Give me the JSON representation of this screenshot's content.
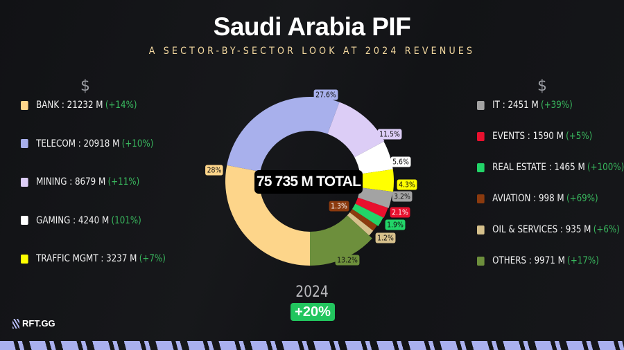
{
  "header": {
    "title": "Saudi Arabia PIF",
    "subtitle": "A SECTOR-BY-SECTOR LOOK AT 2024 REVENUES"
  },
  "currency_symbol": "$",
  "legend_left": [
    {
      "label": "BANK : 21232 M",
      "change": "(+14%)",
      "color": "#fdd58a"
    },
    {
      "label": "TELECOM : 20918 M",
      "change": "(+10%)",
      "color": "#a8b0ec"
    },
    {
      "label": "MINING : 8679 M",
      "change": "(+11%)",
      "color": "#dccdf6"
    },
    {
      "label": "GAMING : 4240 M",
      "change": "(101%)",
      "color": "#ffffff"
    },
    {
      "label": "TRAFFIC MGMT : 3237 M",
      "change": "(+7%)",
      "color": "#ffff00"
    }
  ],
  "legend_right": [
    {
      "label": "IT : 2451 M",
      "change": "(+39%)",
      "color": "#a3a3a3"
    },
    {
      "label": "EVENTS : 1590 M",
      "change": "(+5%)",
      "color": "#e8102e"
    },
    {
      "label": "REAL ESTATE : 1465 M",
      "change": "(+100%)",
      "color": "#22d468"
    },
    {
      "label": "AVIATION : 998 M",
      "change": "(+69%)",
      "color": "#8b3a0e"
    },
    {
      "label": "OIL & SERVICES : 935 M",
      "change": "(+6%)",
      "color": "#d6c08c"
    },
    {
      "label": "OTHERS : 9971 M",
      "change": "(+17%)",
      "color": "#6d8f3c"
    }
  ],
  "chart_data": {
    "type": "pie",
    "variant": "donut",
    "title": "Saudi Arabia PIF",
    "center_label": "75 735 M TOTAL",
    "categories": [
      "BANK",
      "TELECOM",
      "MINING",
      "GAMING",
      "TRAFFIC MGMT",
      "IT",
      "EVENTS",
      "REAL ESTATE",
      "AVIATION",
      "OIL & SERVICES",
      "OTHERS"
    ],
    "values": [
      21232,
      20918,
      8679,
      4240,
      3237,
      2451,
      1590,
      1465,
      998,
      935,
      9971
    ],
    "percent_labels": [
      "28%",
      "27.6%",
      "11.5%",
      "5.6%",
      "4.3%",
      "3.2%",
      "2.1%",
      "1.9%",
      "1.3%",
      "1.2%",
      "13.2%"
    ],
    "colors": [
      "#fdd58a",
      "#a8b0ec",
      "#dccdf6",
      "#ffffff",
      "#ffff00",
      "#a3a3a3",
      "#e8102e",
      "#22d468",
      "#8b3a0e",
      "#d6c08c",
      "#6d8f3c"
    ],
    "label_text_colors": [
      "#111",
      "#111",
      "#111",
      "#111",
      "#111",
      "#111",
      "#fff",
      "#111",
      "#fff",
      "#111",
      "#111"
    ]
  },
  "footer": {
    "year": "2024",
    "growth": "+20%",
    "growth_color": "#22c55e",
    "brand": "RFT.GG"
  }
}
